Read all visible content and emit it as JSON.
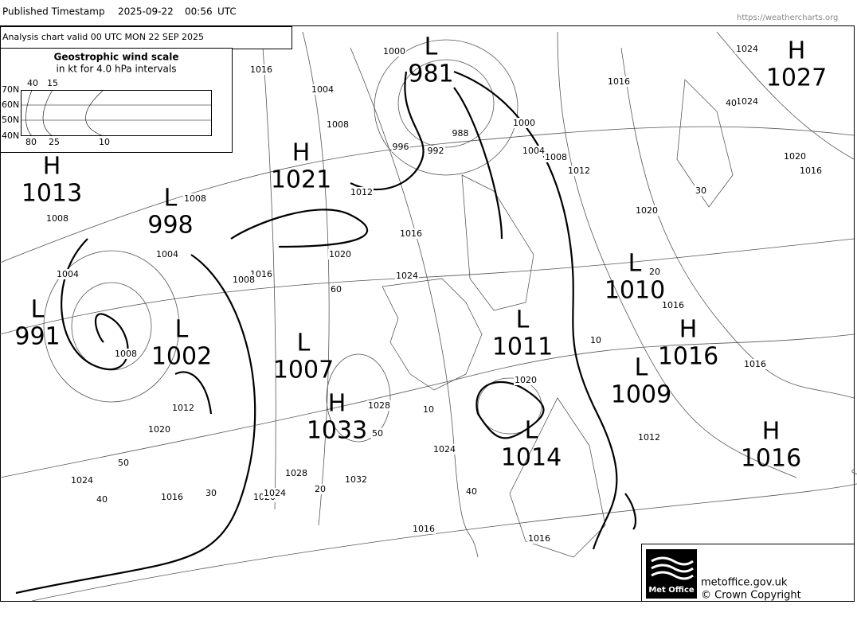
{
  "header": {
    "label": "Published Timestamp",
    "date": "2025-09-22",
    "time": "00:56",
    "zone": "UTC",
    "url": "https://weathercharts.org"
  },
  "analysis": "Analysis chart  valid 00 UTC MON 22  SEP 2025",
  "wind_scale": {
    "title": "Geostrophic wind scale",
    "subtitle": "in kt for 4.0 hPa intervals",
    "lat_labels": [
      "70N",
      "60N",
      "50N",
      "40N"
    ],
    "top_labels": [
      "40",
      "15"
    ],
    "bottom_labels": [
      "80",
      "25",
      "10"
    ]
  },
  "centers": [
    {
      "kind": "H",
      "value": "1027"
    },
    {
      "kind": "L",
      "value": "981"
    },
    {
      "kind": "H",
      "value": "1013"
    },
    {
      "kind": "H",
      "value": "1021"
    },
    {
      "kind": "L",
      "value": "998"
    },
    {
      "kind": "L",
      "value": "1010"
    },
    {
      "kind": "L",
      "value": "991"
    },
    {
      "kind": "L",
      "value": "1002"
    },
    {
      "kind": "L",
      "value": "1007"
    },
    {
      "kind": "L",
      "value": "1011"
    },
    {
      "kind": "H",
      "value": "1016"
    },
    {
      "kind": "L",
      "value": "1009"
    },
    {
      "kind": "H",
      "value": "1033"
    },
    {
      "kind": "L",
      "value": "1014"
    },
    {
      "kind": "H",
      "value": "1016"
    }
  ],
  "isobar_labels": [
    "1000",
    "1016",
    "1004",
    "1008",
    "992",
    "988",
    "996",
    "1000",
    "1004",
    "1008",
    "1012",
    "1016",
    "1024",
    "1024",
    "40",
    "1020",
    "1016",
    "30",
    "1020",
    "1012",
    "1016",
    "1020",
    "1024",
    "60",
    "20",
    "1016",
    "10",
    "1016",
    "1012",
    "1008",
    "1008",
    "1004",
    "1004",
    "1016",
    "1008",
    "1008",
    "1012",
    "1020",
    "50",
    "1024",
    "40",
    "1016",
    "30",
    "1020",
    "1024",
    "1028",
    "20",
    "1032",
    "50",
    "1028",
    "10",
    "1024",
    "40",
    "1016",
    "1016",
    "1020"
  ],
  "logo": {
    "brand": "Met Office",
    "site": "metoffice.gov.uk",
    "copyright": "© Crown Copyright"
  }
}
